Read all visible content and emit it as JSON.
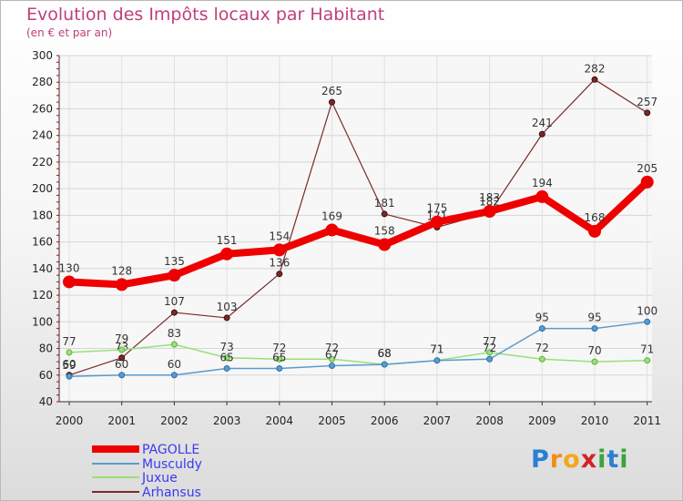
{
  "chart_data": {
    "type": "line",
    "title": "Evolution des Impôts locaux par Habitant",
    "subtitle": "(en € et par an)",
    "xlabel": "",
    "ylabel": "",
    "ylim": [
      40,
      300
    ],
    "yticks": [
      "40",
      "60",
      "80",
      "100",
      "120",
      "140",
      "160",
      "180",
      "200",
      "220",
      "240",
      "260",
      "280",
      "300"
    ],
    "categories": [
      "2000",
      "2001",
      "2002",
      "2003",
      "2004",
      "2005",
      "2006",
      "2007",
      "2008",
      "2009",
      "2010",
      "2011"
    ],
    "legend_position": "bottom-left",
    "series": [
      {
        "name": "PAGOLLE",
        "color": "#ee0000",
        "values": [
          130,
          128,
          135,
          151,
          154,
          169,
          158,
          175,
          183,
          194,
          168,
          205
        ]
      },
      {
        "name": "Musculdy",
        "color": "#5a9bd0",
        "values": [
          59,
          60,
          60,
          65,
          65,
          67,
          68,
          71,
          72,
          95,
          95,
          100
        ]
      },
      {
        "name": "Juxue",
        "color": "#99e07a",
        "values": [
          77,
          79,
          83,
          73,
          72,
          72,
          68,
          71,
          77,
          72,
          70,
          71
        ]
      },
      {
        "name": "Arhansus",
        "color": "#7a2a2a",
        "values": [
          60,
          73,
          107,
          103,
          136,
          265,
          181,
          171,
          182,
          241,
          282,
          257
        ]
      }
    ]
  },
  "logo": {
    "text": "Proxiti",
    "letters": [
      "P",
      "r",
      "o",
      "x",
      "i",
      "t",
      "i"
    ]
  }
}
